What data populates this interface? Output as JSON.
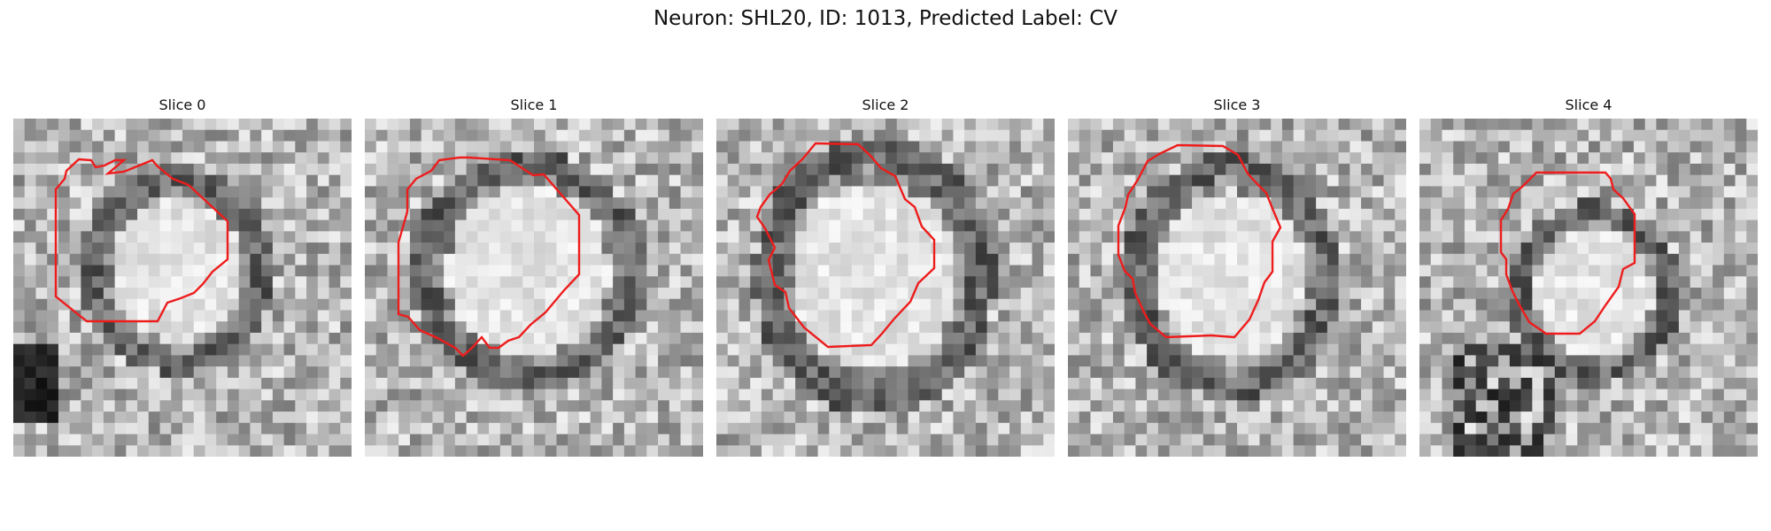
{
  "figure": {
    "title": "Neuron: SHL20, ID: 1013, Predicted Label: CV"
  },
  "slices": [
    {
      "title": "Slice 0"
    },
    {
      "title": "Slice 1"
    },
    {
      "title": "Slice 2"
    },
    {
      "title": "Slice 3"
    },
    {
      "title": "Slice 4"
    }
  ],
  "colors": {
    "contour": "#ee1c1c",
    "background": "#ffffff"
  }
}
